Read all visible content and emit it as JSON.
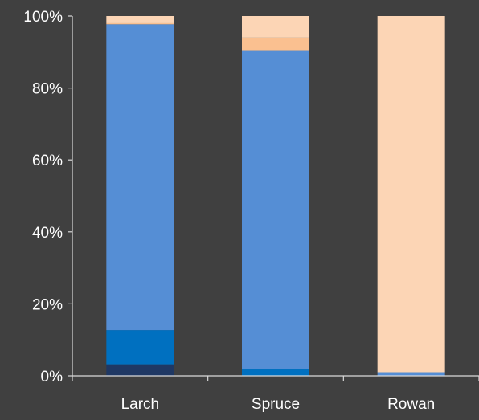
{
  "chart_data": {
    "type": "bar",
    "stacked": true,
    "percent": true,
    "categories": [
      "Larch",
      "Spruce",
      "Rowan"
    ],
    "ylim": [
      0,
      100
    ],
    "yticks": [
      0,
      20,
      40,
      60,
      80,
      100
    ],
    "ytick_labels": [
      "0%",
      "20%",
      "40%",
      "60%",
      "80%",
      "100%"
    ],
    "grid": false,
    "legend": "none",
    "series": [
      {
        "color": "#1f3864",
        "values": [
          3.2,
          0,
          0
        ]
      },
      {
        "color": "#0070c0",
        "values": [
          9.5,
          2.0,
          0
        ]
      },
      {
        "color": "#558ed5",
        "values": [
          85.0,
          88.5,
          1.0
        ]
      },
      {
        "color": "#fac090",
        "values": [
          0.3,
          3.5,
          0
        ]
      },
      {
        "color": "#fcd5b5",
        "values": [
          2.0,
          6.0,
          99.0
        ]
      }
    ]
  }
}
